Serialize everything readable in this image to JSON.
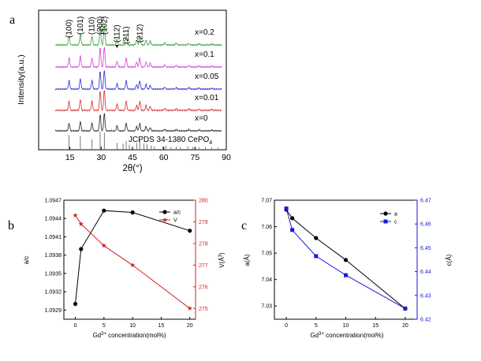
{
  "chart_data": [
    {
      "type": "line",
      "panel_label": "a",
      "xlabel": "2θ(°)",
      "ylabel": "Intensity(a.u.)",
      "xlim": [
        0,
        90
      ],
      "xticks": [
        "15",
        "30",
        "45",
        "60",
        "75",
        "90"
      ],
      "grid": false,
      "series": [
        {
          "name": "x=0.2",
          "color": "#3a9a3a"
        },
        {
          "name": "x=0.1",
          "color": "#d23fd2"
        },
        {
          "name": "x=0.05",
          "color": "#2a2ad0"
        },
        {
          "name": "x=0.01",
          "color": "#d23030"
        },
        {
          "name": "x=0",
          "color": "#222222"
        }
      ],
      "peak_labels": [
        {
          "hkl": "(100)",
          "two_theta": 14.6
        },
        {
          "hkl": "(101)",
          "two_theta": 20.0
        },
        {
          "hkl": "(110)",
          "two_theta": 25.6
        },
        {
          "hkl": "(200)",
          "two_theta": 29.5
        },
        {
          "hkl": "(102)",
          "two_theta": 31.5
        },
        {
          "hkl": "(112)",
          "two_theta": 37.6
        },
        {
          "hkl": "(211)",
          "two_theta": 42.0
        },
        {
          "hkl": "(212)",
          "two_theta": 48.5
        }
      ],
      "reference": {
        "name": "JCPDS 34-1380 CePO",
        "subscript": "4",
        "lines": [
          {
            "two_theta": 14.6,
            "rel": 0.8
          },
          {
            "two_theta": 20.0,
            "rel": 0.75
          },
          {
            "two_theta": 25.6,
            "rel": 0.55
          },
          {
            "two_theta": 29.5,
            "rel": 1.0
          },
          {
            "two_theta": 31.5,
            "rel": 0.95
          },
          {
            "two_theta": 37.6,
            "rel": 0.35
          },
          {
            "two_theta": 40.5,
            "rel": 0.3
          },
          {
            "two_theta": 42.0,
            "rel": 0.45
          },
          {
            "two_theta": 43.5,
            "rel": 0.25
          },
          {
            "two_theta": 47.0,
            "rel": 0.35
          },
          {
            "two_theta": 48.5,
            "rel": 0.5
          },
          {
            "two_theta": 50.5,
            "rel": 0.3
          },
          {
            "two_theta": 52.0,
            "rel": 0.28
          },
          {
            "two_theta": 54.0,
            "rel": 0.2
          },
          {
            "two_theta": 55.5,
            "rel": 0.15
          },
          {
            "two_theta": 59.5,
            "rel": 0.15
          },
          {
            "two_theta": 61.0,
            "rel": 0.18
          },
          {
            "two_theta": 63.5,
            "rel": 0.12
          },
          {
            "two_theta": 66.0,
            "rel": 0.15
          },
          {
            "two_theta": 68.0,
            "rel": 0.12
          },
          {
            "two_theta": 71.5,
            "rel": 0.15
          },
          {
            "two_theta": 74.0,
            "rel": 0.12
          },
          {
            "two_theta": 77.0,
            "rel": 0.1
          },
          {
            "two_theta": 80.0,
            "rel": 0.12
          },
          {
            "two_theta": 83.0,
            "rel": 0.1
          },
          {
            "two_theta": 86.0,
            "rel": 0.08
          }
        ]
      },
      "pattern_peaks": [
        {
          "two_theta": 14.6,
          "rel": 0.45
        },
        {
          "two_theta": 20.0,
          "rel": 0.55
        },
        {
          "two_theta": 25.6,
          "rel": 0.45
        },
        {
          "two_theta": 29.5,
          "rel": 0.95
        },
        {
          "two_theta": 31.5,
          "rel": 1.0
        },
        {
          "two_theta": 37.6,
          "rel": 0.3
        },
        {
          "two_theta": 42.0,
          "rel": 0.45
        },
        {
          "two_theta": 47.0,
          "rel": 0.25
        },
        {
          "two_theta": 48.5,
          "rel": 0.45
        },
        {
          "two_theta": 51.5,
          "rel": 0.25
        },
        {
          "two_theta": 53.5,
          "rel": 0.2
        },
        {
          "two_theta": 60.5,
          "rel": 0.1
        },
        {
          "two_theta": 66.0,
          "rel": 0.08
        },
        {
          "two_theta": 72.0,
          "rel": 0.07
        },
        {
          "two_theta": 77.0,
          "rel": 0.06
        },
        {
          "two_theta": 83.0,
          "rel": 0.05
        }
      ]
    },
    {
      "type": "line",
      "panel_label": "b",
      "xlabel": "Gd",
      "xlabel_sup": "3+",
      "xlabel_rest": " concentration(mol%)",
      "ylabel_left": "a/c",
      "ylabel_right": "V(Å",
      "ylabel_right_sup": "3",
      "ylabel_right_close": ")",
      "xlim": [
        -2,
        21
      ],
      "xticks": [
        0,
        5,
        10,
        15,
        20
      ],
      "ylim_left": [
        1.09275,
        1.0947
      ],
      "yticks_left": [
        "1.0929",
        "1.0932",
        "1.0935",
        "1.0938",
        "1.0941",
        "1.0944",
        "1.0947"
      ],
      "ylim_right": [
        274.5,
        280
      ],
      "yticks_right": [
        "275",
        "276",
        "277",
        "278",
        "279",
        "280"
      ],
      "legend_position": "top-right",
      "series": [
        {
          "name": "a/c",
          "axis": "left",
          "color": "#000000",
          "marker": "circle",
          "x": [
            0,
            1,
            5,
            10,
            20
          ],
          "y": [
            1.093,
            1.0939,
            1.09453,
            1.0945,
            1.0942
          ]
        },
        {
          "name": "V",
          "axis": "right",
          "color": "#d42020",
          "marker": "star",
          "x": [
            0,
            1,
            5,
            10,
            20
          ],
          "y": [
            279.3,
            278.9,
            277.9,
            277.0,
            275.0
          ]
        }
      ]
    },
    {
      "type": "line",
      "panel_label": "c",
      "xlabel": "Gd",
      "xlabel_sup": "3+",
      "xlabel_rest": " concentration(mol%)",
      "ylabel_left": "a(Å)",
      "ylabel_right": "c(Å)",
      "xlim": [
        -2,
        22
      ],
      "xticks": [
        0,
        5,
        10,
        15,
        20
      ],
      "ylim_left": [
        7.025,
        7.07
      ],
      "yticks_left": [
        "7.03",
        "7.04",
        "7.05",
        "7.06",
        "7.07"
      ],
      "ylim_right": [
        6.42,
        6.47
      ],
      "yticks_right": [
        "6.42",
        "6.43",
        "6.44",
        "6.45",
        "6.46",
        "6.47"
      ],
      "legend_position": "top-right",
      "series": [
        {
          "name": "a",
          "axis": "left",
          "color": "#000000",
          "marker": "circle",
          "x": [
            0,
            1,
            5,
            10,
            20
          ],
          "y": [
            7.0664,
            7.0632,
            7.0557,
            7.0474,
            7.029
          ]
        },
        {
          "name": "c",
          "axis": "right",
          "color": "#1a1ad8",
          "marker": "square",
          "x": [
            0,
            1,
            5,
            10,
            20
          ],
          "y": [
            6.4665,
            6.4575,
            6.4465,
            6.4385,
            6.4245
          ]
        }
      ]
    }
  ]
}
